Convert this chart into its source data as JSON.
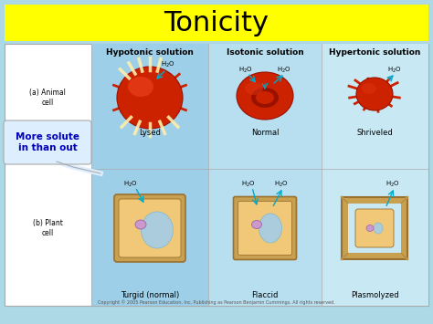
{
  "title": "Tonicity",
  "title_bg": "#ffff00",
  "title_color": "#000000",
  "title_fontsize": 22,
  "bg_color": "#add8e6",
  "panel_bg": "#ffffff",
  "col_bg_hypo": "#9ecfe8",
  "col_bg_iso": "#b8dff0",
  "col_bg_hyper": "#c8e8f4",
  "col_headers": [
    "Hypotonic solution",
    "Isotonic solution",
    "Hypertonic solution"
  ],
  "row_labels_a": "(a) Animal\ncell",
  "row_labels_b": "(b) Plant\ncell",
  "animal_labels": [
    "Lysed",
    "Normal",
    "Shriveled"
  ],
  "plant_labels": [
    "Turgid (normal)",
    "Flaccid",
    "Plasmolyzed"
  ],
  "callout_text": "More solute\nin than out",
  "copyright": "Copyright © 2005 Pearson Education, Inc. Publishing as Pearson Benjamin Cummings. All rights reserved.",
  "header_fontsize": 6.5,
  "label_fontsize": 6,
  "row_label_fontsize": 5.5,
  "callout_fontsize": 7.5,
  "copyright_fontsize": 3.5,
  "cell_red": "#cc2200",
  "cell_red_dark": "#991100",
  "cell_red_mid": "#bb1800",
  "wall_color": "#c8a050",
  "wall_edge": "#9a7030",
  "vacuole_color": "#aaccdd",
  "nucleus_color": "#cc99cc",
  "nucleus_edge": "#9966aa",
  "h2o_arrow_color": "#00aacc"
}
